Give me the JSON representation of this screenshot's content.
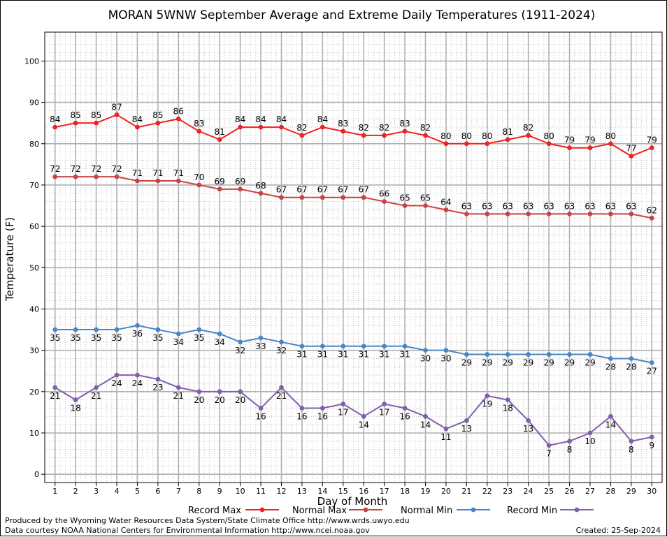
{
  "chart_data": {
    "type": "line",
    "title": "MORAN 5WNW September Average and Extreme Daily Temperatures (1911-2024)",
    "xlabel": "Day of Month",
    "ylabel": "Temperature (F)",
    "x": [
      1,
      2,
      3,
      4,
      5,
      6,
      7,
      8,
      9,
      10,
      11,
      12,
      13,
      14,
      15,
      16,
      17,
      18,
      19,
      20,
      21,
      22,
      23,
      24,
      25,
      26,
      27,
      28,
      29,
      30
    ],
    "xlim": [
      0.5,
      30.5
    ],
    "ylim": [
      -2,
      107
    ],
    "yticks": [
      0,
      10,
      20,
      30,
      40,
      50,
      60,
      70,
      80,
      90,
      100
    ],
    "grid": true,
    "legend_position": "bottom",
    "series": [
      {
        "name": "Record Max",
        "color": "#ee2222",
        "values": [
          84,
          85,
          85,
          87,
          84,
          85,
          86,
          83,
          81,
          84,
          84,
          84,
          82,
          84,
          83,
          82,
          82,
          83,
          82,
          80,
          80,
          80,
          81,
          82,
          80,
          79,
          79,
          80,
          77,
          79
        ],
        "label_position": "above"
      },
      {
        "name": "Normal Max",
        "color": "#c84444",
        "values": [
          72,
          72,
          72,
          72,
          71,
          71,
          71,
          70,
          69,
          69,
          68,
          67,
          67,
          67,
          67,
          67,
          66,
          65,
          65,
          64,
          63,
          63,
          63,
          63,
          63,
          63,
          63,
          63,
          63,
          62
        ],
        "label_position": "above"
      },
      {
        "name": "Normal Min",
        "color": "#4a86c5",
        "values": [
          35,
          35,
          35,
          35,
          36,
          35,
          34,
          35,
          34,
          32,
          33,
          32,
          31,
          31,
          31,
          31,
          31,
          31,
          30,
          30,
          29,
          29,
          29,
          29,
          29,
          29,
          29,
          28,
          28,
          27
        ],
        "label_position": "below"
      },
      {
        "name": "Record Min",
        "color": "#8060a8",
        "values": [
          21,
          18,
          21,
          24,
          24,
          23,
          21,
          20,
          20,
          20,
          16,
          21,
          16,
          16,
          17,
          14,
          17,
          16,
          14,
          11,
          13,
          19,
          18,
          13,
          7,
          8,
          10,
          14,
          8,
          9
        ],
        "label_position": "below"
      }
    ]
  },
  "footer": {
    "line1": "Produced by the Wyoming Water Resources Data System/State Climate Office http://www.wrds.uwyo.edu",
    "line2": "Data courtesy NOAA National Centers for Environmental Information http://www.ncei.noaa.gov",
    "created": "Created:  25-Sep-2024"
  }
}
